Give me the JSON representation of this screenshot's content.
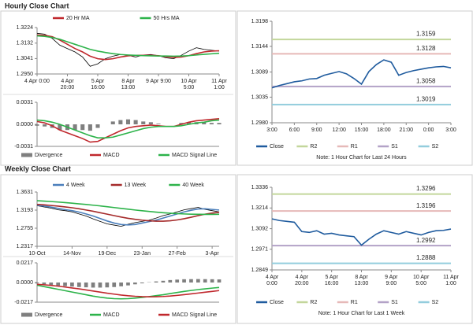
{
  "sections": [
    {
      "title": "Hourly Close Chart"
    },
    {
      "title": "Weekly Close Chart"
    }
  ],
  "chart_data": [
    {
      "type": "line",
      "legend": "top",
      "categories": [
        "4 Apr 0:00",
        null,
        null,
        null,
        "4 Apr\n20:00",
        null,
        null,
        null,
        "5 Apr\n16:00",
        null,
        null,
        null,
        "8 Apr\n13:00",
        null,
        null,
        null,
        "9 Apr 9:00",
        null,
        null,
        null,
        "10 Apr\n5:00",
        null,
        null,
        null,
        "11 Apr\n1:00"
      ],
      "series": [
        {
          "color": "#000000",
          "values": [
            1.319,
            1.3185,
            1.316,
            1.312,
            1.31,
            1.308,
            1.305,
            1.2995,
            1.301,
            1.304,
            1.3055,
            1.3065,
            1.306,
            1.305,
            1.3062,
            1.3065,
            1.3058,
            1.3045,
            1.304,
            1.306,
            1.3085,
            1.3105,
            1.3095,
            1.309,
            1.3085
          ]
        },
        {
          "name": "20 Hr MA",
          "color": "#c0282d",
          "values": [
            1.318,
            1.3178,
            1.317,
            1.315,
            1.3125,
            1.31,
            1.308,
            1.3055,
            1.304,
            1.3035,
            1.304,
            1.305,
            1.3057,
            1.306,
            1.306,
            1.306,
            1.3058,
            1.3052,
            1.3048,
            1.305,
            1.3058,
            1.307,
            1.308,
            1.3085,
            1.3087
          ]
        },
        {
          "name": "50 Hrs MA",
          "color": "#2db34a",
          "values": [
            1.3175,
            1.3172,
            1.3165,
            1.3155,
            1.314,
            1.3125,
            1.311,
            1.3095,
            1.3085,
            1.3077,
            1.307,
            1.3065,
            1.3062,
            1.306,
            1.3058,
            1.3057,
            1.3056,
            1.3056,
            1.3055,
            1.3056,
            1.3058,
            1.3062,
            1.3066,
            1.3069,
            1.3072
          ]
        }
      ],
      "ylim": [
        1.295,
        1.3224
      ],
      "yticks": [
        {
          "value": 1.295,
          "label": "1.2950"
        },
        1.3041,
        1.3132,
        1.3224
      ]
    },
    {
      "type": "line",
      "legend": "bottom",
      "series": [
        {
          "name": "Divergence",
          "type": "bar",
          "color": "#7f7f7f",
          "values": [
            -0.0002,
            -0.0003,
            -0.0005,
            -0.0008,
            -0.0008,
            -0.0008,
            -0.0008,
            -0.0009,
            -0.0005,
            0,
            0.0004,
            0.0006,
            0.0007,
            0.0006,
            0.0004,
            0.0003,
            0.0001,
            0,
            0,
            0.0002,
            0.0003,
            0.0003,
            0.0003,
            0.0002,
            0.0002
          ]
        },
        {
          "name": "MACD",
          "color": "#c0282d",
          "values": [
            0.0004,
            0.0002,
            -0.0002,
            -0.0008,
            -0.0012,
            -0.0016,
            -0.002,
            -0.0025,
            -0.0024,
            -0.0019,
            -0.0014,
            -0.0009,
            -0.0005,
            -0.0003,
            -0.0002,
            -0.0001,
            -0.0002,
            -0.0003,
            -0.0003,
            0,
            0.0003,
            0.0005,
            0.0006,
            0.0007,
            0.0008
          ]
        },
        {
          "name": "MACD Signal Line",
          "color": "#2db34a",
          "values": [
            0.0006,
            0.0005,
            0.0003,
            0,
            -0.0004,
            -0.0008,
            -0.0012,
            -0.0016,
            -0.0019,
            -0.0019,
            -0.0018,
            -0.0015,
            -0.0012,
            -0.0009,
            -0.0006,
            -0.0004,
            -0.0003,
            -0.0003,
            -0.0003,
            -0.0002,
            0,
            0.0002,
            0.0003,
            0.0005,
            0.0006
          ]
        }
      ],
      "ylim": [
        -0.0031,
        0.0031
      ],
      "yticks": [
        -0.0031,
        {
          "value": 0,
          "label": "0.0000"
        },
        0.0031
      ]
    },
    {
      "type": "line",
      "legend": "bottom",
      "note": "Note: 1 Hour Chart for Last 24 Hours",
      "categories": [
        "3:00",
        null,
        null,
        "6:00",
        null,
        null,
        "9:00",
        null,
        null,
        "12:00",
        null,
        null,
        "15:00",
        null,
        null,
        "18:00",
        null,
        null,
        "21:00",
        null,
        null,
        "0:00",
        null,
        null,
        "3:00"
      ],
      "series": [
        {
          "name": "Close",
          "color": "#1f5b9e",
          "values": [
            1.3055,
            1.306,
            1.3064,
            1.3068,
            1.307,
            1.3074,
            1.3075,
            1.3082,
            1.3086,
            1.309,
            1.3085,
            1.3075,
            1.3063,
            1.309,
            1.3105,
            1.3115,
            1.311,
            1.3082,
            1.3088,
            1.3092,
            1.3095,
            1.3098,
            1.31,
            1.3101,
            1.3098
          ]
        }
      ],
      "levels": [
        {
          "name": "R2",
          "value": 1.3159,
          "color": "#c3d69b"
        },
        {
          "name": "R1",
          "value": 1.3128,
          "color": "#e6b9b8"
        },
        {
          "name": "S1",
          "value": 1.3058,
          "color": "#b3a2c7"
        },
        {
          "name": "S2",
          "value": 1.3019,
          "color": "#93cddd"
        }
      ],
      "ylim": [
        1.298,
        1.3198
      ],
      "yticks": [
        {
          "value": 1.298,
          "label": "1.2980"
        },
        1.3035,
        1.3089,
        1.3144,
        1.3198
      ]
    },
    {
      "type": "line",
      "legend": "top",
      "categories": [
        "10-Oct",
        null,
        null,
        null,
        null,
        "14-Nov",
        null,
        null,
        null,
        null,
        "19-Dec",
        null,
        null,
        null,
        null,
        "23-Jan",
        null,
        null,
        null,
        null,
        "27-Feb",
        null,
        null,
        null,
        null,
        "3-Apr",
        null
      ],
      "series": [
        {
          "color": "#000000",
          "values": [
            1.33,
            1.327,
            1.324,
            1.32,
            1.318,
            1.315,
            1.31,
            1.305,
            1.298,
            1.292,
            1.286,
            1.283,
            1.28,
            1.285,
            1.289,
            1.292,
            1.295,
            1.3,
            1.306,
            1.31,
            1.315,
            1.32,
            1.323,
            1.326,
            1.321,
            1.318,
            1.315
          ]
        },
        {
          "name": "4 Week",
          "color": "#4a7ebb",
          "values": [
            1.331,
            1.329,
            1.3265,
            1.3235,
            1.3205,
            1.318,
            1.3145,
            1.31,
            1.305,
            1.299,
            1.293,
            1.288,
            1.2845,
            1.2835,
            1.2845,
            1.288,
            1.2915,
            1.295,
            1.3,
            1.305,
            1.31,
            1.315,
            1.319,
            1.322,
            1.3225,
            1.321,
            1.3195
          ]
        },
        {
          "name": "13 Week",
          "color": "#a52a2a",
          "values": [
            1.333,
            1.332,
            1.3305,
            1.329,
            1.327,
            1.325,
            1.3225,
            1.3195,
            1.3165,
            1.313,
            1.3095,
            1.306,
            1.3025,
            1.2995,
            1.297,
            1.295,
            1.2935,
            1.2925,
            1.2925,
            1.2935,
            1.2955,
            1.2985,
            1.302,
            1.306,
            1.3095,
            1.312,
            1.314
          ]
        },
        {
          "name": "40 Week",
          "color": "#2db34a",
          "values": [
            1.342,
            1.341,
            1.34,
            1.3388,
            1.3375,
            1.336,
            1.3345,
            1.333,
            1.3312,
            1.3295,
            1.3275,
            1.3255,
            1.3235,
            1.3215,
            1.3195,
            1.3178,
            1.316,
            1.3145,
            1.313,
            1.3118,
            1.3108,
            1.31,
            1.3095,
            1.3092,
            1.309,
            1.309,
            1.3092
          ]
        }
      ],
      "ylim": [
        1.2317,
        1.3631
      ],
      "yticks": [
        1.2317,
        1.2755,
        1.3193,
        1.3631
      ]
    },
    {
      "type": "line",
      "legend": "bottom",
      "series": [
        {
          "name": "Divergence",
          "type": "bar",
          "color": "#7f7f7f",
          "values": [
            -0.001,
            -0.002,
            -0.0028,
            -0.0035,
            -0.004,
            -0.0045,
            -0.005,
            -0.0053,
            -0.0056,
            -0.0056,
            -0.0054,
            -0.005,
            -0.0042,
            -0.0032,
            -0.002,
            -0.0009,
            0.0003,
            0.0012,
            0.0019,
            0.0027,
            0.0032,
            0.0036,
            0.0037,
            0.0038,
            0.0037,
            0.0036,
            0.0034
          ]
        },
        {
          "name": "MACD",
          "color": "#2db34a",
          "values": [
            -0.003,
            -0.0045,
            -0.006,
            -0.0075,
            -0.009,
            -0.0105,
            -0.012,
            -0.0135,
            -0.015,
            -0.0162,
            -0.0172,
            -0.0178,
            -0.018,
            -0.0178,
            -0.0172,
            -0.0165,
            -0.0155,
            -0.0145,
            -0.0135,
            -0.0122,
            -0.011,
            -0.0098,
            -0.0088,
            -0.0078,
            -0.007,
            -0.0062,
            -0.0055
          ]
        },
        {
          "name": "MACD Signal Line",
          "color": "#c0282d",
          "values": [
            -0.002,
            -0.0025,
            -0.0032,
            -0.004,
            -0.005,
            -0.006,
            -0.007,
            -0.0082,
            -0.0094,
            -0.0106,
            -0.0118,
            -0.0128,
            -0.0138,
            -0.0146,
            -0.0152,
            -0.0156,
            -0.0158,
            -0.0157,
            -0.0154,
            -0.0149,
            -0.0142,
            -0.0134,
            -0.0125,
            -0.0116,
            -0.0107,
            -0.0098,
            -0.0089
          ]
        }
      ],
      "ylim": [
        -0.0217,
        0.0217
      ],
      "yticks": [
        -0.0217,
        {
          "value": 0,
          "label": "0.0000"
        },
        0.0217
      ]
    },
    {
      "type": "line",
      "legend": "bottom",
      "note": "Note: 1 Hour Chart for Last 1 Week",
      "categories": [
        "4 Apr\n0:00",
        null,
        null,
        null,
        "4 Apr\n20:00",
        null,
        null,
        null,
        "5 Apr\n16:00",
        null,
        null,
        null,
        "8 Apr\n13:00",
        null,
        null,
        null,
        "9 Apr\n9:00",
        null,
        null,
        null,
        "10 Apr\n5:00",
        null,
        null,
        null,
        "11 Apr\n1:00"
      ],
      "series": [
        {
          "name": "Close",
          "color": "#1f5b9e",
          "values": [
            1.315,
            1.314,
            1.3135,
            1.313,
            1.3075,
            1.307,
            1.308,
            1.306,
            1.3065,
            1.3055,
            1.305,
            1.3045,
            1.2995,
            1.303,
            1.306,
            1.308,
            1.307,
            1.306,
            1.3075,
            1.3065,
            1.3055,
            1.307,
            1.308,
            1.3082,
            1.309
          ]
        }
      ],
      "levels": [
        {
          "name": "R2",
          "value": 1.3296,
          "color": "#c3d69b"
        },
        {
          "name": "R1",
          "value": 1.3196,
          "color": "#e6b9b8"
        },
        {
          "name": "S1",
          "value": 1.2992,
          "color": "#b3a2c7"
        },
        {
          "name": "S2",
          "value": 1.2888,
          "color": "#93cddd"
        }
      ],
      "ylim": [
        1.2849,
        1.3336
      ],
      "yticks": [
        1.2849,
        1.2971,
        1.3092,
        1.3214,
        1.3336
      ]
    }
  ]
}
